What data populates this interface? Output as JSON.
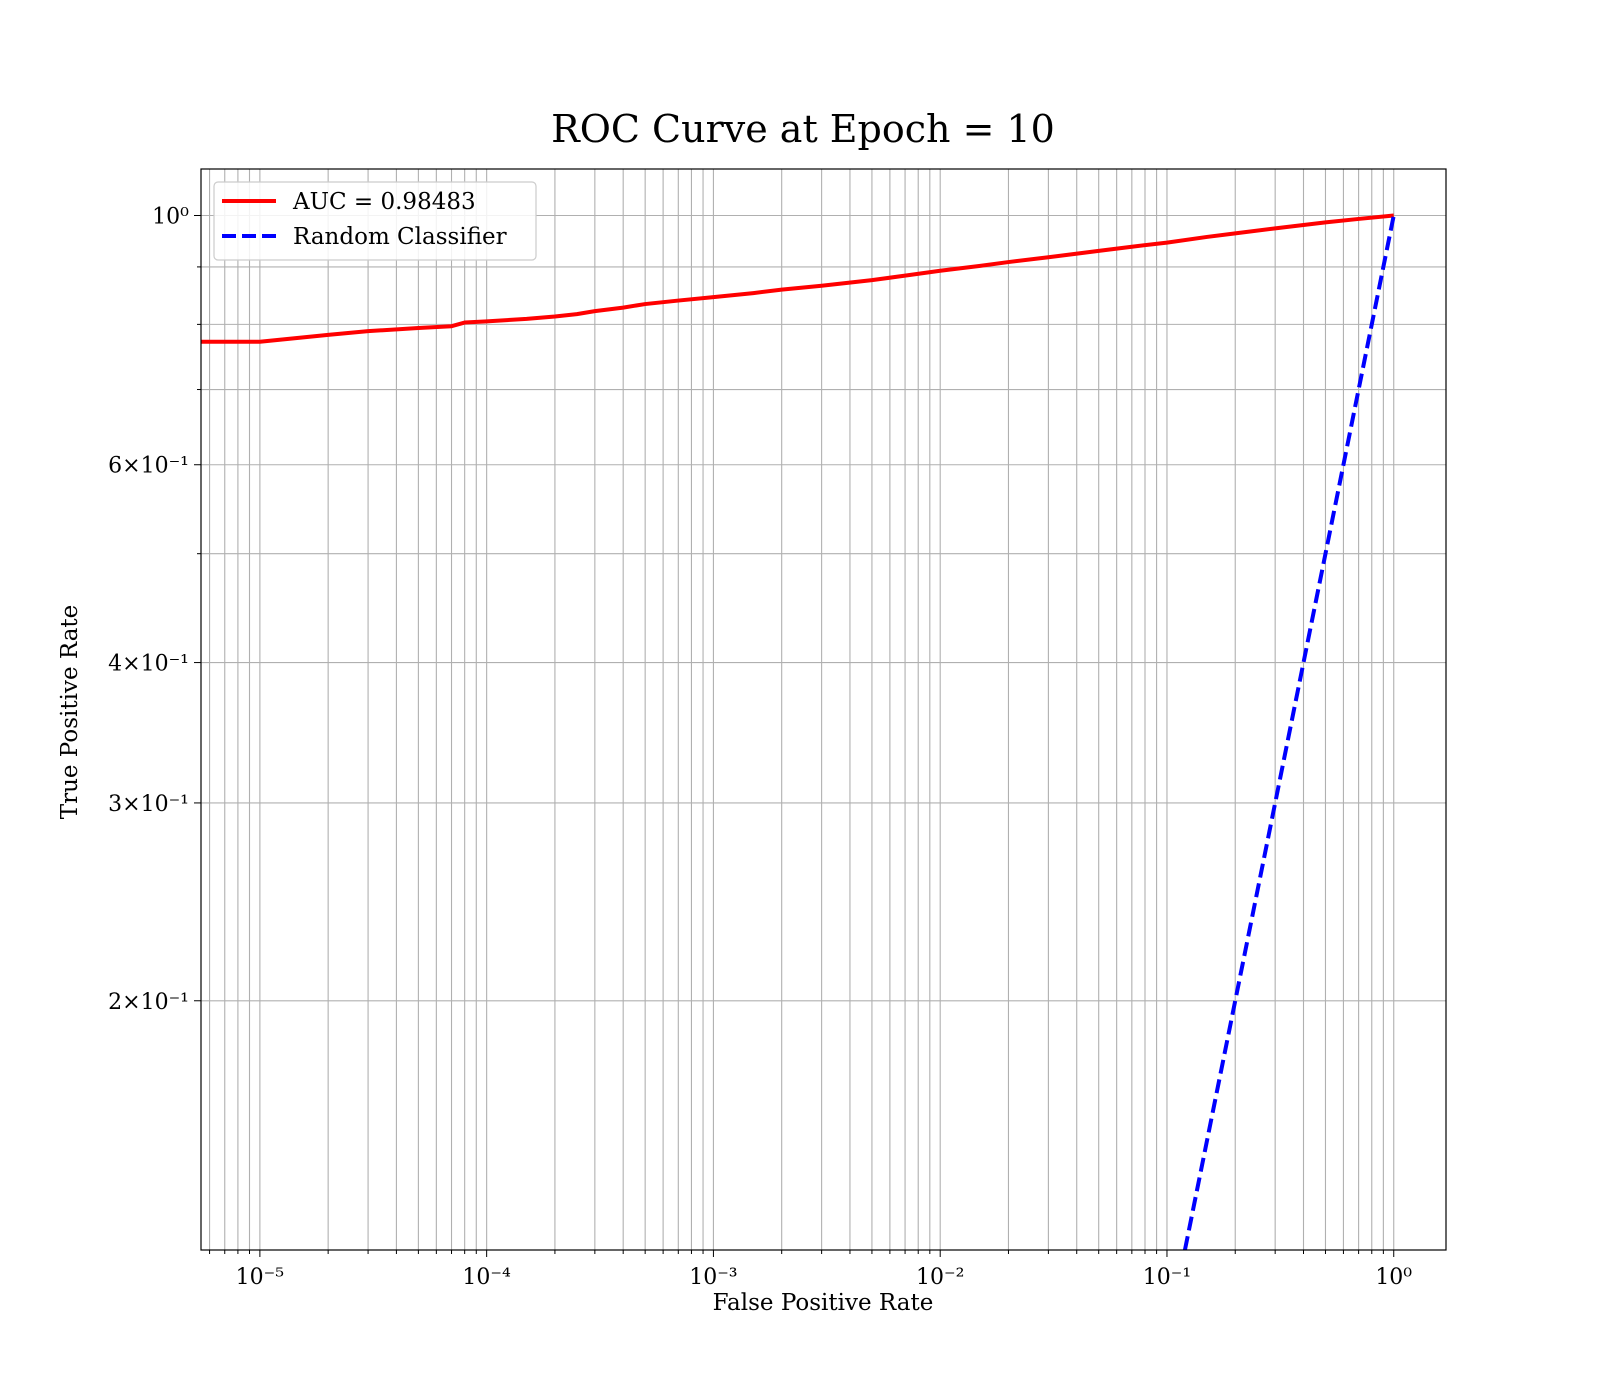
{
  "chart_data": {
    "type": "line",
    "title": "ROC Curve at Epoch = 10",
    "xlabel": "False Positive Rate",
    "ylabel": "True Positive Rate",
    "xscale": "log",
    "yscale": "log",
    "xlim": [
      5.5e-06,
      1.7
    ],
    "ylim": [
      0.12,
      1.1
    ],
    "grid": "both",
    "legend": "upper-left",
    "x_ticks": [
      {
        "value": 1e-05,
        "label": "10⁻⁵"
      },
      {
        "value": 0.0001,
        "label": "10⁻⁴"
      },
      {
        "value": 0.001,
        "label": "10⁻³"
      },
      {
        "value": 0.01,
        "label": "10⁻²"
      },
      {
        "value": 0.1,
        "label": "10⁻¹"
      },
      {
        "value": 1,
        "label": "10⁰"
      }
    ],
    "y_ticks": [
      {
        "value": 1,
        "label": "10⁰"
      },
      {
        "value": 0.6,
        "label": "6×10⁻¹"
      },
      {
        "value": 0.4,
        "label": "4×10⁻¹"
      },
      {
        "value": 0.3,
        "label": "3×10⁻¹"
      },
      {
        "value": 0.2,
        "label": "2×10⁻¹"
      }
    ],
    "y_minor_ticks": [
      0.9,
      0.8,
      0.7,
      0.5
    ],
    "series": [
      {
        "name": "AUC = 0.98483",
        "color": "#ff0000",
        "style": "solid",
        "x": [
          5.5e-06,
          1e-05,
          2e-05,
          3e-05,
          5e-05,
          7e-05,
          8e-05,
          0.0001,
          0.00015,
          0.0002,
          0.00025,
          0.0003,
          0.0004,
          0.0005,
          0.0007,
          0.001,
          0.0015,
          0.002,
          0.003,
          0.005,
          0.007,
          0.01,
          0.015,
          0.02,
          0.03,
          0.05,
          0.07,
          0.1,
          0.15,
          0.2,
          0.3,
          0.5,
          0.7,
          1.0
        ],
        "y": [
          0.772,
          0.772,
          0.783,
          0.789,
          0.794,
          0.797,
          0.803,
          0.805,
          0.809,
          0.813,
          0.817,
          0.822,
          0.828,
          0.834,
          0.84,
          0.846,
          0.853,
          0.859,
          0.866,
          0.876,
          0.884,
          0.893,
          0.902,
          0.909,
          0.918,
          0.93,
          0.938,
          0.946,
          0.957,
          0.964,
          0.974,
          0.986,
          0.993,
          1.0
        ]
      },
      {
        "name": "Random Classifier",
        "color": "#0000ff",
        "style": "dashed",
        "x": [
          0.12,
          0.2,
          0.3,
          0.5,
          0.7,
          1.0
        ],
        "y": [
          0.12,
          0.2,
          0.3,
          0.5,
          0.7,
          1.0
        ]
      }
    ]
  }
}
